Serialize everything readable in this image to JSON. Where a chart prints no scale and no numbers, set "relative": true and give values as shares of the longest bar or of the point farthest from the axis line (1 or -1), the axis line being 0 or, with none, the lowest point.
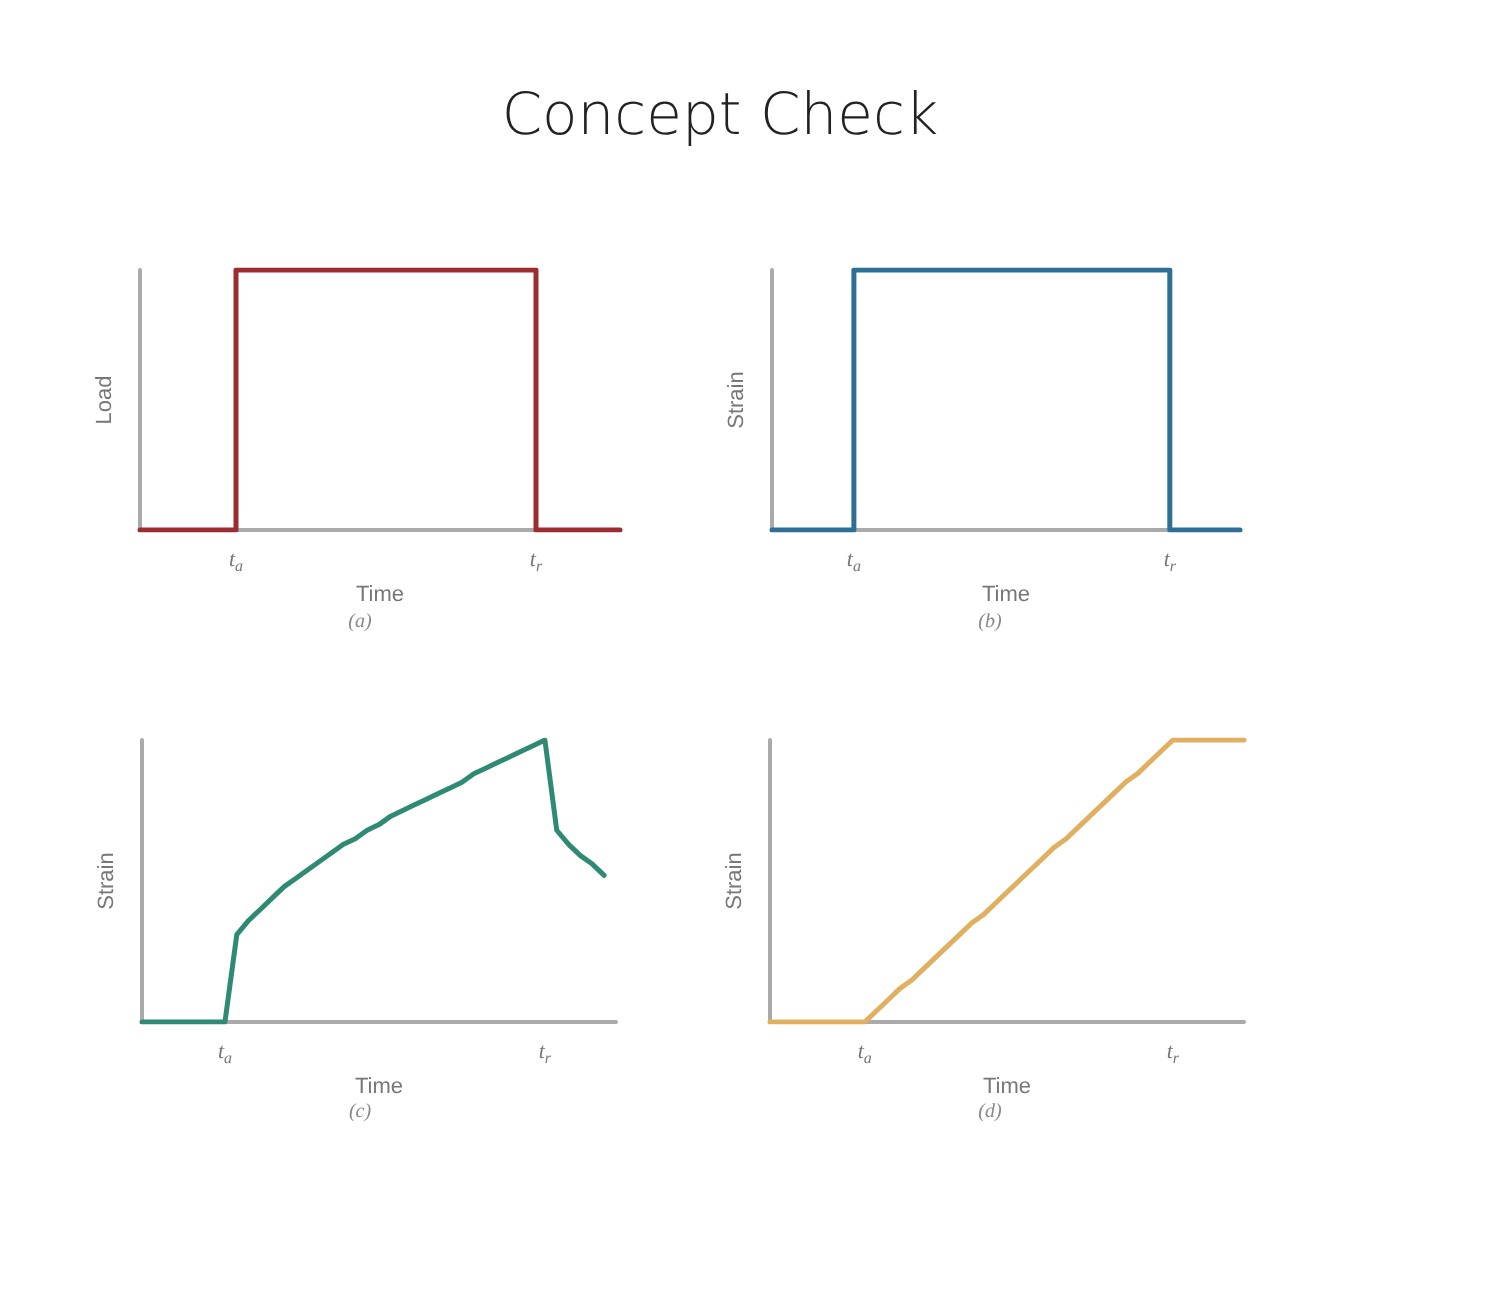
{
  "chart_data": [
    {
      "type": "step",
      "title": "Concept Check",
      "xlabel": "Time",
      "ylabel": "Load",
      "relative": true,
      "annotations": [
        "(a)"
      ],
      "grid": false,
      "marker": "none",
      "categories": [
        null,
        null,
        null,
        null,
        null,
        null,
        null,
        null,
        "t$_{a}$",
        null,
        null,
        null,
        null,
        null,
        null,
        null,
        null,
        null,
        null,
        null,
        null,
        null,
        null,
        null,
        null,
        null,
        null,
        null,
        null,
        null,
        null,
        null,
        null,
        "t$_{r}$",
        null,
        null,
        null,
        null,
        null,
        null,
        null
      ],
      "series": [
        {
          "color": "#9b2d30",
          "values": [
            0,
            0,
            0,
            0,
            0,
            0,
            0,
            0,
            1,
            1,
            1,
            1,
            1,
            1,
            1,
            1,
            1,
            1,
            1,
            1,
            1,
            1,
            1,
            1,
            1,
            1,
            1,
            1,
            1,
            1,
            1,
            1,
            1,
            0,
            0,
            0,
            0,
            0,
            0,
            0,
            0
          ]
        }
      ]
    },
    {
      "type": "step",
      "xlabel": "Time",
      "ylabel": "Strain",
      "relative": true,
      "annotations": [
        "(b)"
      ],
      "grid": false,
      "marker": "none",
      "categories": [
        null,
        null,
        null,
        null,
        null,
        null,
        null,
        "t$_{a}$",
        null,
        null,
        null,
        null,
        null,
        null,
        null,
        null,
        null,
        null,
        null,
        null,
        null,
        null,
        null,
        null,
        null,
        null,
        null,
        null,
        null,
        null,
        null,
        null,
        null,
        null,
        "t$_{r}$",
        null,
        null,
        null,
        null,
        null,
        null
      ],
      "series": [
        {
          "color": "#2e6f96",
          "values": [
            0,
            0,
            0,
            0,
            0,
            0,
            0,
            1,
            1,
            1,
            1,
            1,
            1,
            1,
            1,
            1,
            1,
            1,
            1,
            1,
            1,
            1,
            1,
            1,
            1,
            1,
            1,
            1,
            1,
            1,
            1,
            1,
            1,
            1,
            0,
            0,
            0,
            0,
            0,
            0,
            0
          ]
        }
      ]
    },
    {
      "type": "line",
      "xlabel": "Time",
      "ylabel": "Strain",
      "relative": true,
      "annotations": [
        "(c)"
      ],
      "grid": false,
      "marker": "none",
      "categories": [
        null,
        null,
        null,
        null,
        null,
        null,
        null,
        "t$_{a}$",
        null,
        null,
        null,
        null,
        null,
        null,
        null,
        null,
        null,
        null,
        null,
        null,
        null,
        null,
        null,
        null,
        null,
        null,
        null,
        null,
        null,
        null,
        null,
        null,
        null,
        null,
        "t$_{r}$",
        null,
        null,
        null,
        null,
        null,
        null
      ],
      "series": [
        {
          "color": "#2f8a73",
          "values": [
            0,
            0,
            0,
            0,
            0,
            0,
            0,
            0,
            0.31,
            0.36,
            0.4,
            0.44,
            0.48,
            0.51,
            0.54,
            0.57,
            0.6,
            0.63,
            0.65,
            0.68,
            0.7,
            0.73,
            0.75,
            0.77,
            0.79,
            0.81,
            0.83,
            0.85,
            0.88,
            0.9,
            0.92,
            0.94,
            0.96,
            0.98,
            1,
            0.68,
            0.63,
            0.59,
            0.56,
            0.52,
            null
          ]
        }
      ]
    },
    {
      "type": "line",
      "xlabel": "Time",
      "ylabel": "Strain",
      "relative": true,
      "annotations": [
        "(d)"
      ],
      "grid": false,
      "marker": "none",
      "categories": [
        null,
        null,
        null,
        null,
        null,
        null,
        null,
        null,
        "t$_{a}$",
        null,
        null,
        null,
        null,
        null,
        null,
        null,
        null,
        null,
        null,
        null,
        null,
        null,
        null,
        null,
        null,
        null,
        null,
        null,
        null,
        null,
        null,
        null,
        null,
        null,
        "t$_{r}$",
        null,
        null,
        null,
        null,
        null,
        null
      ],
      "series": [
        {
          "color": "#e0b060",
          "values": [
            0,
            0,
            0,
            0,
            0,
            0,
            0,
            0,
            0,
            0.04,
            0.08,
            0.12,
            0.15,
            0.19,
            0.23,
            0.27,
            0.31,
            0.35,
            0.38,
            0.42,
            0.46,
            0.5,
            0.54,
            0.58,
            0.62,
            0.65,
            0.69,
            0.73,
            0.77,
            0.81,
            0.85,
            0.88,
            0.92,
            0.96,
            1,
            1,
            1,
            1,
            1,
            1,
            1
          ]
        }
      ]
    }
  ]
}
